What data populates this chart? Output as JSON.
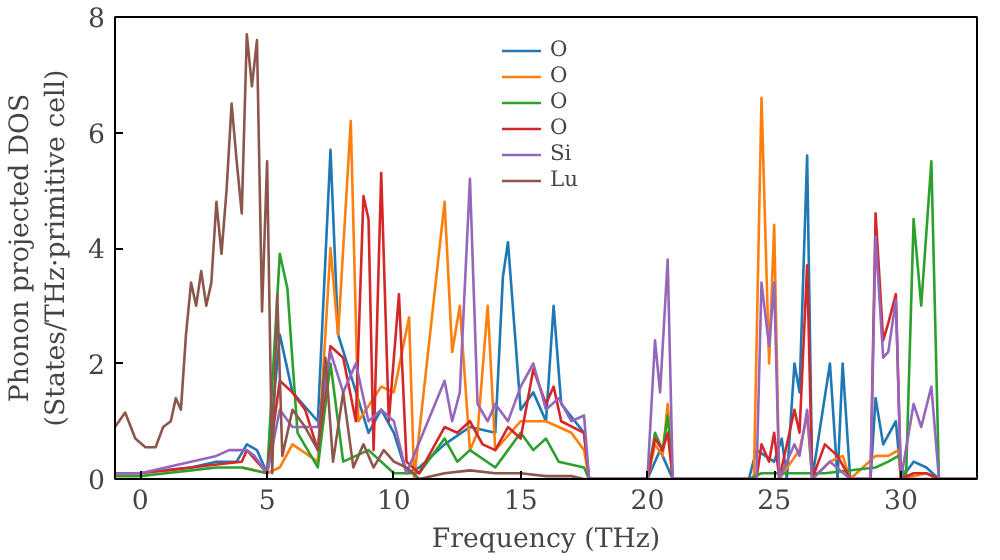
{
  "chart_data": {
    "type": "line",
    "xlabel": "Frequency (THz)",
    "ylabel": "Phonon projected DOS\n(States/THz·primitive cell)",
    "xlim": [
      -1,
      33
    ],
    "ylim": [
      0,
      8
    ],
    "xticks": [
      0,
      5,
      10,
      15,
      20,
      25,
      30
    ],
    "yticks": [
      0,
      2,
      4,
      6,
      8
    ],
    "legend": "top",
    "grid": false,
    "series": [
      {
        "name": "O",
        "color": "#1f77b4",
        "x": [
          1,
          2,
          3,
          3.8,
          4.2,
          4.6,
          5,
          5.5,
          6,
          7,
          7.5,
          7.8,
          8.3,
          9,
          9.5,
          10,
          10.5,
          11,
          12,
          13,
          14,
          14.3,
          14.5,
          15,
          15.5,
          16,
          16.3,
          16.6,
          17.5,
          17.7,
          20,
          20.5,
          21,
          24,
          24.3,
          25,
          25.3,
          25.5,
          25.8,
          26,
          26.3,
          26.5,
          27.2,
          27.5,
          27.7,
          28,
          28.8,
          29,
          29.3,
          29.8,
          30,
          30.5,
          31,
          31.5,
          33
        ],
        "values": [
          0.15,
          0.2,
          0.3,
          0.3,
          0.6,
          0.5,
          0.1,
          2.5,
          1.5,
          1.0,
          5.7,
          2.5,
          1.8,
          0.8,
          1.2,
          0.8,
          0.1,
          0.2,
          0.6,
          0.9,
          0.8,
          3.5,
          4.1,
          1.2,
          1.5,
          1.0,
          3.0,
          1.3,
          0.8,
          0,
          0,
          0.5,
          0,
          0,
          0.5,
          0.3,
          0.7,
          0,
          2.0,
          1.5,
          5.6,
          0,
          2.0,
          0,
          2.0,
          0,
          0,
          1.4,
          0.6,
          1.0,
          0,
          0.3,
          0.2,
          0,
          0
        ]
      },
      {
        "name": "O",
        "color": "#ff7f0e",
        "x": [
          4,
          5,
          5.5,
          6,
          7,
          7.5,
          7.8,
          8.3,
          8.6,
          9.5,
          10,
          10.6,
          10.8,
          12,
          12.3,
          12.6,
          13,
          13.3,
          13.7,
          14,
          15,
          16,
          17,
          17.5,
          17.7,
          20,
          20.3,
          20.6,
          20.8,
          21,
          24.2,
          24.5,
          24.8,
          25,
          25.2,
          26,
          26.3,
          26.5,
          27.2,
          27.7,
          28,
          29,
          29.5,
          29.9,
          30,
          31,
          31.5,
          33
        ],
        "values": [
          0.2,
          0.1,
          0.2,
          0.6,
          0.3,
          4.0,
          2.5,
          6.2,
          1.0,
          1.6,
          1.5,
          2.8,
          0,
          4.8,
          2.2,
          3.0,
          0.5,
          0.8,
          3.0,
          0.5,
          1.0,
          1.0,
          0.8,
          0.5,
          0,
          0,
          0.6,
          0.4,
          1.3,
          0,
          0,
          6.6,
          2.0,
          4.4,
          0,
          0.5,
          1.1,
          0,
          0.3,
          0.4,
          0,
          0.4,
          0.4,
          0.5,
          0,
          0.1,
          0,
          0
        ]
      },
      {
        "name": "O",
        "color": "#2ca02c",
        "x": [
          -1,
          0,
          1,
          2,
          3,
          4,
          5,
          5.5,
          5.8,
          6.2,
          7,
          7.5,
          8,
          9,
          10,
          11,
          12,
          12.5,
          13,
          14,
          14.5,
          15,
          15.5,
          16,
          16.5,
          17.5,
          17.7,
          20,
          20.3,
          20.6,
          20.8,
          21,
          24,
          24.5,
          26.3,
          27,
          29,
          29.5,
          29.9,
          30.2,
          30.5,
          30.8,
          31.2,
          31.5,
          33
        ],
        "values": [
          0.05,
          0.05,
          0.1,
          0.15,
          0.2,
          0.2,
          0.1,
          3.9,
          3.3,
          0.8,
          0.2,
          2.0,
          0.3,
          0.5,
          0.1,
          0.1,
          0.7,
          0.3,
          0.5,
          0.2,
          0.5,
          0.8,
          0.5,
          0.7,
          0.3,
          0.2,
          0,
          0,
          0.8,
          0.5,
          1.1,
          0,
          0,
          0.1,
          0.1,
          0.1,
          0.2,
          0.3,
          0.4,
          0,
          4.5,
          3.0,
          5.5,
          0,
          0
        ]
      },
      {
        "name": "O",
        "color": "#d62728",
        "x": [
          -1,
          0,
          1,
          2,
          3,
          4,
          4.2,
          5,
          5.5,
          6,
          6.5,
          7,
          7.5,
          8,
          8.5,
          8.8,
          9,
          9.2,
          9.5,
          9.8,
          10.2,
          10.5,
          11,
          12,
          12.5,
          13,
          13.5,
          14,
          14.5,
          15,
          15.5,
          16,
          16.3,
          16.6,
          17.5,
          17.7,
          20,
          20.3,
          20.6,
          20.8,
          21,
          24.3,
          24.5,
          24.8,
          25,
          25.2,
          25.8,
          26,
          26.3,
          26.5,
          27,
          27.5,
          28,
          28.8,
          29,
          29.3,
          29.5,
          29.8,
          30,
          30.5,
          31,
          31.5,
          33
        ],
        "values": [
          0.1,
          0.1,
          0.15,
          0.2,
          0.25,
          0.3,
          0.5,
          0.1,
          1.7,
          1.5,
          1.2,
          0.5,
          2.3,
          2.1,
          1.0,
          4.9,
          4.5,
          0.5,
          5.3,
          1.0,
          3.2,
          0.3,
          0.1,
          0.9,
          0.8,
          1.0,
          0.6,
          0.5,
          0.9,
          0.7,
          1.9,
          1.3,
          1.6,
          1.0,
          0.8,
          0,
          0,
          0.7,
          0.5,
          0.8,
          0,
          0,
          0.6,
          0.3,
          0.8,
          0,
          1.2,
          0.8,
          3.7,
          0,
          0.6,
          0.4,
          0,
          0,
          4.6,
          2.4,
          2.7,
          3.2,
          0,
          0.1,
          0.1,
          0,
          0
        ]
      },
      {
        "name": "Si",
        "color": "#9467bd",
        "x": [
          -1,
          0,
          1,
          2,
          3,
          3.5,
          4.2,
          4.5,
          5,
          5.5,
          6,
          7,
          7.5,
          8,
          8.5,
          9,
          9.5,
          10,
          10.5,
          12,
          12.3,
          12.6,
          13,
          13.3,
          13.7,
          14,
          14.5,
          15,
          15.5,
          16,
          16.5,
          17,
          17.5,
          17.7,
          20,
          20.3,
          20.5,
          20.8,
          21,
          24.3,
          24.5,
          24.8,
          25,
          25.2,
          25.8,
          26,
          26.3,
          26.5,
          27.2,
          28,
          28.8,
          29,
          29.3,
          29.5,
          29.8,
          30,
          30.5,
          30.8,
          31.2,
          31.5,
          33
        ],
        "values": [
          0.1,
          0.1,
          0.2,
          0.3,
          0.4,
          0.5,
          0.5,
          0.4,
          0.1,
          1.2,
          0.9,
          0.9,
          2.2,
          1.5,
          2.0,
          1.0,
          1.2,
          1.0,
          0.1,
          1.7,
          1.0,
          1.5,
          5.2,
          1.3,
          1.0,
          1.3,
          1.0,
          1.6,
          2.0,
          1.2,
          1.4,
          1.0,
          1.1,
          0,
          0,
          2.4,
          1.5,
          3.8,
          0,
          0,
          3.4,
          2.3,
          3.4,
          0,
          0.6,
          0.4,
          1.2,
          0,
          0.3,
          0,
          0,
          4.2,
          2.1,
          2.2,
          3.1,
          0,
          1.3,
          0.9,
          1.6,
          0,
          0
        ]
      },
      {
        "name": "Lu",
        "color": "#8c564b",
        "x": [
          -1,
          -0.6,
          -0.2,
          0.2,
          0.6,
          0.9,
          1.2,
          1.4,
          1.6,
          1.8,
          2.0,
          2.2,
          2.4,
          2.6,
          2.8,
          3.0,
          3.2,
          3.4,
          3.6,
          3.8,
          4.0,
          4.2,
          4.4,
          4.6,
          4.8,
          5.0,
          5.2,
          5.4,
          5.6,
          6.0,
          6.5,
          7.0,
          7.3,
          7.6,
          8.0,
          8.4,
          8.8,
          9.2,
          9.6,
          10,
          10.5,
          11,
          12,
          13,
          14,
          15,
          16,
          17,
          17.5,
          33
        ],
        "values": [
          0.9,
          1.15,
          0.7,
          0.55,
          0.55,
          0.9,
          1.0,
          1.4,
          1.2,
          2.5,
          3.4,
          3.0,
          3.6,
          3.0,
          3.4,
          4.8,
          3.9,
          5.0,
          6.5,
          5.5,
          4.6,
          7.7,
          6.8,
          7.6,
          2.9,
          5.5,
          0.1,
          3.2,
          0.4,
          1.2,
          0.9,
          0.5,
          2.1,
          0.3,
          1.5,
          0.2,
          0.6,
          0.2,
          0.5,
          0.3,
          0.2,
          0,
          0.1,
          0.15,
          0.1,
          0.1,
          0.05,
          0.05,
          0,
          0
        ]
      }
    ]
  }
}
